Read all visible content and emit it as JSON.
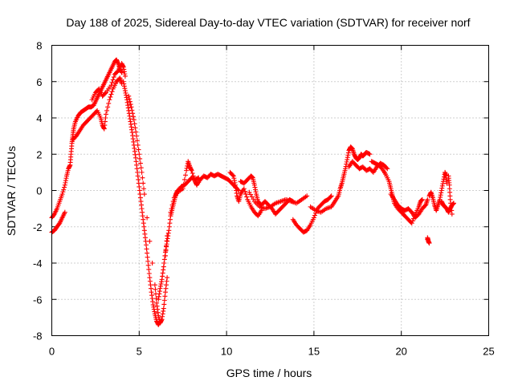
{
  "chart_data": {
    "type": "scatter",
    "title": "Day 188 of 2025, Sidereal Day-to-day VTEC variation (SDTVAR) for receiver norf",
    "xlabel": "GPS time / hours",
    "ylabel": "SDTVAR / TECUs",
    "xlim": [
      0,
      25
    ],
    "ylim": [
      -8,
      8
    ],
    "xticks": [
      0,
      5,
      10,
      15,
      20,
      25
    ],
    "yticks": [
      -8,
      -6,
      -4,
      -2,
      0,
      2,
      4,
      6,
      8
    ],
    "xtick_labels": [
      "0",
      "5",
      "10",
      "15",
      "20",
      "25"
    ],
    "ytick_labels": [
      "-8",
      "-6",
      "-4",
      "-2",
      "0",
      "2",
      "4",
      "6",
      "8"
    ],
    "grid": true,
    "marker": "+",
    "color": "#ff0000",
    "series": [
      {
        "name": "SDTVAR",
        "points": [
          [
            0.0,
            -2.3
          ],
          [
            0.15,
            -2.2
          ],
          [
            0.3,
            -2.0
          ],
          [
            0.45,
            -1.8
          ],
          [
            0.6,
            -1.5
          ],
          [
            0.75,
            -1.2
          ],
          [
            0.0,
            -1.5
          ],
          [
            0.15,
            -1.3
          ],
          [
            0.3,
            -1.0
          ],
          [
            0.45,
            -0.6
          ],
          [
            0.6,
            -0.2
          ],
          [
            0.75,
            0.3
          ],
          [
            0.85,
            0.8
          ],
          [
            0.95,
            1.2
          ],
          [
            1.05,
            1.4
          ],
          [
            1.1,
            2.0
          ],
          [
            1.15,
            2.6
          ],
          [
            1.2,
            3.0
          ],
          [
            1.25,
            3.4
          ],
          [
            1.35,
            3.8
          ],
          [
            1.5,
            4.1
          ],
          [
            1.65,
            4.3
          ],
          [
            1.8,
            4.4
          ],
          [
            1.95,
            4.5
          ],
          [
            2.1,
            4.6
          ],
          [
            2.25,
            4.6
          ],
          [
            2.4,
            4.7
          ],
          [
            2.55,
            5.0
          ],
          [
            2.7,
            5.3
          ],
          [
            2.85,
            5.6
          ],
          [
            3.0,
            5.9
          ],
          [
            3.15,
            6.2
          ],
          [
            3.3,
            6.5
          ],
          [
            3.45,
            6.8
          ],
          [
            3.6,
            7.1
          ],
          [
            3.7,
            7.2
          ],
          [
            3.8,
            7.0
          ],
          [
            3.9,
            6.7
          ],
          [
            4.0,
            6.5
          ],
          [
            1.2,
            2.8
          ],
          [
            1.4,
            3.0
          ],
          [
            1.6,
            3.3
          ],
          [
            1.8,
            3.6
          ],
          [
            2.0,
            3.8
          ],
          [
            2.2,
            4.0
          ],
          [
            2.4,
            4.2
          ],
          [
            2.6,
            4.4
          ],
          [
            2.8,
            4.0
          ],
          [
            2.9,
            3.6
          ],
          [
            3.0,
            3.4
          ],
          [
            3.1,
            4.2
          ],
          [
            3.3,
            5.0
          ],
          [
            3.5,
            5.6
          ],
          [
            3.7,
            6.0
          ],
          [
            3.9,
            6.2
          ],
          [
            4.0,
            5.9
          ],
          [
            2.3,
            5.0
          ],
          [
            2.5,
            5.4
          ],
          [
            2.7,
            5.6
          ],
          [
            2.9,
            5.2
          ],
          [
            3.1,
            5.4
          ],
          [
            3.4,
            5.8
          ],
          [
            3.6,
            6.4
          ],
          [
            3.8,
            6.6
          ],
          [
            4.0,
            7.0
          ],
          [
            4.1,
            6.8
          ],
          [
            4.2,
            6.3
          ],
          [
            4.1,
            6.0
          ],
          [
            4.2,
            5.5
          ],
          [
            4.3,
            5.0
          ],
          [
            4.4,
            4.4
          ],
          [
            4.5,
            3.8
          ],
          [
            4.6,
            3.2
          ],
          [
            4.7,
            2.5
          ],
          [
            4.8,
            1.8
          ],
          [
            4.9,
            1.0
          ],
          [
            5.0,
            0.2
          ],
          [
            5.1,
            -0.6
          ],
          [
            5.2,
            -1.4
          ],
          [
            5.3,
            -2.2
          ],
          [
            5.4,
            -3.0
          ],
          [
            5.5,
            -3.9
          ],
          [
            5.6,
            -4.8
          ],
          [
            5.7,
            -5.6
          ],
          [
            5.8,
            -6.3
          ],
          [
            5.9,
            -6.8
          ],
          [
            6.0,
            -7.2
          ],
          [
            6.1,
            -7.4
          ],
          [
            6.2,
            -7.2
          ],
          [
            4.4,
            5.2
          ],
          [
            4.55,
            4.6
          ],
          [
            4.7,
            3.9
          ],
          [
            4.85,
            3.0
          ],
          [
            5.0,
            2.0
          ],
          [
            5.15,
            1.0
          ],
          [
            5.3,
            -0.2
          ],
          [
            5.45,
            -1.5
          ],
          [
            5.6,
            -2.8
          ],
          [
            5.75,
            -4.0
          ],
          [
            5.9,
            -5.2
          ],
          [
            6.0,
            -6.2
          ],
          [
            6.1,
            -6.9
          ],
          [
            6.2,
            -7.3
          ],
          [
            6.3,
            -7.1
          ],
          [
            6.4,
            -6.5
          ],
          [
            6.5,
            -5.6
          ],
          [
            6.6,
            -4.8
          ],
          [
            6.1,
            -6.0
          ],
          [
            6.2,
            -5.4
          ],
          [
            6.3,
            -4.9
          ],
          [
            6.4,
            -4.2
          ],
          [
            6.5,
            -3.4
          ],
          [
            6.6,
            -2.8
          ],
          [
            6.7,
            -2.2
          ],
          [
            6.8,
            -1.4
          ],
          [
            6.9,
            -1.0
          ],
          [
            7.0,
            -0.6
          ],
          [
            7.1,
            -0.2
          ],
          [
            7.2,
            0.0
          ],
          [
            7.4,
            0.2
          ],
          [
            7.6,
            0.3
          ],
          [
            7.8,
            0.5
          ],
          [
            8.0,
            0.7
          ],
          [
            8.2,
            0.6
          ],
          [
            8.4,
            0.7
          ],
          [
            6.5,
            -3.6
          ],
          [
            6.6,
            -2.5
          ],
          [
            6.8,
            -1.2
          ],
          [
            7.0,
            -0.4
          ],
          [
            7.2,
            -0.1
          ],
          [
            7.5,
            0.1
          ],
          [
            7.7,
            1.1
          ],
          [
            7.8,
            1.6
          ],
          [
            7.9,
            1.3
          ],
          [
            8.0,
            1.1
          ],
          [
            8.2,
            0.5
          ],
          [
            8.3,
            0.3
          ],
          [
            8.5,
            0.6
          ],
          [
            8.7,
            0.8
          ],
          [
            8.9,
            0.7
          ],
          [
            9.1,
            0.9
          ],
          [
            9.3,
            0.8
          ],
          [
            9.5,
            0.9
          ],
          [
            9.7,
            0.8
          ],
          [
            9.9,
            0.7
          ],
          [
            10.1,
            0.6
          ],
          [
            10.3,
            0.4
          ],
          [
            10.5,
            0.2
          ],
          [
            10.7,
            0.0
          ],
          [
            10.2,
            1.0
          ],
          [
            10.4,
            0.8
          ],
          [
            10.5,
            0.3
          ],
          [
            10.6,
            -0.3
          ],
          [
            10.7,
            -0.6
          ],
          [
            10.8,
            -0.2
          ],
          [
            11.0,
            0.1
          ],
          [
            11.2,
            -0.5
          ],
          [
            11.4,
            -0.9
          ],
          [
            11.6,
            -1.2
          ],
          [
            11.8,
            -1.4
          ],
          [
            12.0,
            -1.1
          ],
          [
            10.8,
            0.5
          ],
          [
            11.0,
            0.4
          ],
          [
            11.2,
            0.6
          ],
          [
            11.4,
            0.8
          ],
          [
            11.5,
            0.7
          ],
          [
            11.6,
            0.3
          ],
          [
            11.7,
            -0.2
          ],
          [
            11.8,
            -0.6
          ],
          [
            12.0,
            -0.8
          ],
          [
            12.2,
            -0.6
          ],
          [
            12.4,
            -0.8
          ],
          [
            12.6,
            -1.0
          ],
          [
            12.8,
            -1.3
          ],
          [
            13.0,
            -1.1
          ],
          [
            13.2,
            -0.9
          ],
          [
            13.4,
            -0.7
          ],
          [
            13.6,
            -0.5
          ],
          [
            13.8,
            -0.6
          ],
          [
            11.3,
            -0.1
          ],
          [
            11.6,
            -0.6
          ],
          [
            11.9,
            -0.9
          ],
          [
            12.2,
            -1.0
          ],
          [
            12.5,
            -0.9
          ],
          [
            12.8,
            -0.7
          ],
          [
            13.1,
            -0.6
          ],
          [
            13.4,
            -0.5
          ],
          [
            13.7,
            -0.6
          ],
          [
            14.0,
            -0.7
          ],
          [
            14.3,
            -0.5
          ],
          [
            14.6,
            -0.3
          ],
          [
            13.8,
            -1.6
          ],
          [
            14.0,
            -1.9
          ],
          [
            14.2,
            -2.1
          ],
          [
            14.4,
            -2.3
          ],
          [
            14.6,
            -2.2
          ],
          [
            14.8,
            -1.9
          ],
          [
            15.0,
            -1.5
          ],
          [
            15.2,
            -1.0
          ],
          [
            15.4,
            -0.8
          ],
          [
            15.6,
            -0.6
          ],
          [
            15.8,
            -0.5
          ],
          [
            16.0,
            -0.3
          ],
          [
            14.8,
            -0.9
          ],
          [
            15.1,
            -1.1
          ],
          [
            15.4,
            -1.2
          ],
          [
            15.7,
            -1.0
          ],
          [
            16.0,
            -0.9
          ],
          [
            16.2,
            -0.6
          ],
          [
            16.4,
            -0.3
          ],
          [
            16.5,
            0.1
          ],
          [
            16.6,
            0.4
          ],
          [
            16.7,
            0.8
          ],
          [
            16.8,
            1.2
          ],
          [
            16.9,
            1.7
          ],
          [
            17.0,
            2.2
          ],
          [
            17.1,
            2.4
          ],
          [
            17.2,
            2.3
          ],
          [
            17.3,
            2.0
          ],
          [
            17.4,
            1.8
          ],
          [
            17.5,
            1.7
          ],
          [
            17.6,
            1.8
          ],
          [
            17.7,
            2.0
          ],
          [
            17.8,
            1.9
          ],
          [
            17.9,
            2.0
          ],
          [
            18.0,
            2.1
          ],
          [
            18.2,
            2.0
          ],
          [
            17.0,
            1.3
          ],
          [
            17.2,
            1.6
          ],
          [
            17.4,
            1.4
          ],
          [
            17.6,
            1.2
          ],
          [
            17.8,
            1.3
          ],
          [
            18.0,
            1.1
          ],
          [
            18.2,
            1.2
          ],
          [
            18.4,
            1.0
          ],
          [
            18.6,
            1.3
          ],
          [
            18.8,
            1.5
          ],
          [
            19.0,
            1.4
          ],
          [
            19.2,
            1.2
          ],
          [
            18.3,
            1.6
          ],
          [
            18.5,
            1.5
          ],
          [
            18.7,
            1.4
          ],
          [
            18.9,
            1.2
          ],
          [
            19.1,
            0.9
          ],
          [
            19.3,
            0.5
          ],
          [
            19.4,
            0.1
          ],
          [
            19.5,
            -0.3
          ],
          [
            19.6,
            -0.7
          ],
          [
            19.8,
            -1.0
          ],
          [
            20.0,
            -1.2
          ],
          [
            20.2,
            -1.4
          ],
          [
            20.4,
            -1.6
          ],
          [
            20.6,
            -1.8
          ],
          [
            20.8,
            -1.3
          ],
          [
            21.0,
            -0.9
          ],
          [
            21.1,
            -0.6
          ],
          [
            21.2,
            -0.5
          ],
          [
            19.4,
            -0.2
          ],
          [
            19.6,
            -0.5
          ],
          [
            19.8,
            -0.8
          ],
          [
            20.0,
            -1.0
          ],
          [
            20.2,
            -1.1
          ],
          [
            20.4,
            -1.0
          ],
          [
            20.6,
            -1.2
          ],
          [
            20.8,
            -1.5
          ],
          [
            21.0,
            -1.3
          ],
          [
            21.2,
            -1.0
          ],
          [
            21.4,
            -0.8
          ],
          [
            21.5,
            -0.5
          ],
          [
            21.5,
            -2.6
          ],
          [
            21.55,
            -2.8
          ],
          [
            21.6,
            -2.9
          ],
          [
            21.5,
            -2.7
          ],
          [
            21.6,
            -0.3
          ],
          [
            21.7,
            -0.1
          ],
          [
            21.8,
            -0.4
          ],
          [
            21.9,
            -0.8
          ],
          [
            22.0,
            -1.1
          ],
          [
            22.1,
            -0.8
          ],
          [
            22.2,
            -0.5
          ],
          [
            22.3,
            0.0
          ],
          [
            22.4,
            0.5
          ],
          [
            22.5,
            1.0
          ],
          [
            22.55,
            0.8
          ],
          [
            22.6,
            0.4
          ],
          [
            22.3,
            -0.6
          ],
          [
            22.4,
            -0.8
          ],
          [
            22.5,
            -0.9
          ],
          [
            22.6,
            -1.0
          ],
          [
            22.7,
            -1.2
          ],
          [
            22.8,
            -1.0
          ],
          [
            22.9,
            -0.8
          ],
          [
            23.0,
            -0.7
          ],
          [
            22.7,
            0.8
          ],
          [
            22.75,
            0.3
          ],
          [
            22.8,
            -0.5
          ],
          [
            22.9,
            -1.3
          ]
        ]
      }
    ]
  }
}
